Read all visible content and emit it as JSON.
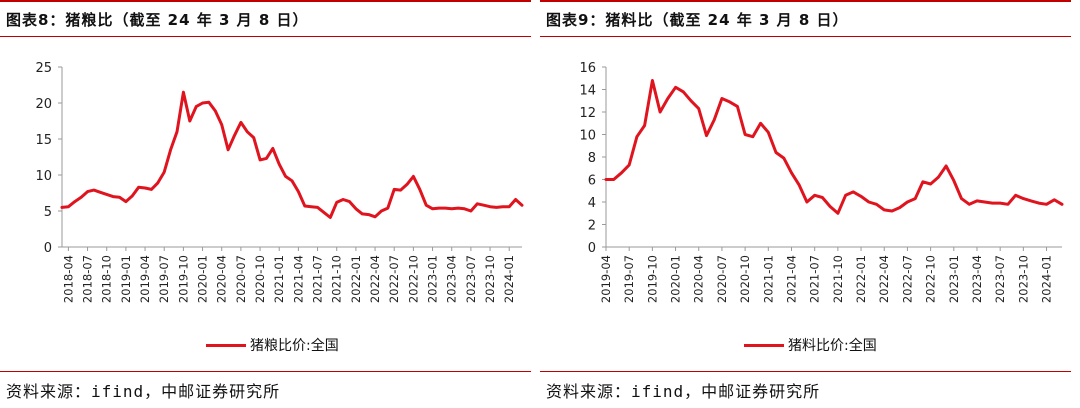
{
  "colors": {
    "accent": "#c00000",
    "series": "#e0141e"
  },
  "left": {
    "title": "图表8：猪粮比（截至 24 年 3 月 8 日）",
    "source": "资料来源：ifind，中邮证券研究所"
  },
  "right": {
    "title": "图表9：猪料比（截至 24 年 3 月 8 日）",
    "source": "资料来源：ifind，中邮证券研究所"
  },
  "chart_data": [
    {
      "type": "line",
      "title": "",
      "xlabel": "",
      "ylabel": "",
      "ylim": [
        0,
        25
      ],
      "yticks": [
        0,
        5,
        10,
        15,
        20,
        25
      ],
      "grid": false,
      "legend_position": "bottom",
      "xtick_labels": [
        "2018-04",
        "2018-07",
        "2018-10",
        "2019-01",
        "2019-04",
        "2019-07",
        "2019-10",
        "2020-01",
        "2020-04",
        "2020-07",
        "2020-10",
        "2021-01",
        "2021-04",
        "2021-07",
        "2021-10",
        "2022-01",
        "2022-04",
        "2022-07",
        "2022-10",
        "2023-01",
        "2023-04",
        "2023-07",
        "2023-10",
        "2024-01"
      ],
      "series": [
        {
          "name": "猪粮比价:全国",
          "x": [
            "2018-03",
            "2018-04",
            "2018-05",
            "2018-06",
            "2018-07",
            "2018-08",
            "2018-09",
            "2018-10",
            "2018-11",
            "2018-12",
            "2019-01",
            "2019-02",
            "2019-03",
            "2019-04",
            "2019-05",
            "2019-06",
            "2019-07",
            "2019-08",
            "2019-09",
            "2019-10",
            "2019-11",
            "2019-12",
            "2020-01",
            "2020-02",
            "2020-03",
            "2020-04",
            "2020-05",
            "2020-06",
            "2020-07",
            "2020-08",
            "2020-09",
            "2020-10",
            "2020-11",
            "2020-12",
            "2021-01",
            "2021-02",
            "2021-03",
            "2021-04",
            "2021-05",
            "2021-06",
            "2021-07",
            "2021-08",
            "2021-09",
            "2021-10",
            "2021-11",
            "2021-12",
            "2022-01",
            "2022-02",
            "2022-03",
            "2022-04",
            "2022-05",
            "2022-06",
            "2022-07",
            "2022-08",
            "2022-09",
            "2022-10",
            "2022-11",
            "2022-12",
            "2023-01",
            "2023-02",
            "2023-03",
            "2023-04",
            "2023-05",
            "2023-06",
            "2023-07",
            "2023-08",
            "2023-09",
            "2023-10",
            "2023-11",
            "2023-12",
            "2024-01",
            "2024-02",
            "2024-03"
          ],
          "values": [
            5.5,
            5.6,
            6.3,
            6.9,
            7.7,
            7.9,
            7.6,
            7.3,
            7.0,
            6.9,
            6.3,
            7.1,
            8.3,
            8.2,
            8.0,
            8.9,
            10.4,
            13.5,
            16.0,
            21.5,
            17.5,
            19.5,
            20.0,
            20.1,
            18.9,
            17.0,
            13.5,
            15.5,
            17.3,
            16.0,
            15.2,
            12.1,
            12.3,
            13.7,
            11.5,
            9.8,
            9.2,
            7.7,
            5.7,
            5.6,
            5.5,
            4.8,
            4.1,
            6.2,
            6.6,
            6.3,
            5.3,
            4.6,
            4.5,
            4.2,
            5.0,
            5.4,
            8.0,
            7.9,
            8.7,
            9.8,
            8.0,
            5.8,
            5.3,
            5.4,
            5.4,
            5.3,
            5.4,
            5.3,
            5.0,
            6.0,
            5.8,
            5.6,
            5.5,
            5.6,
            5.6,
            6.6,
            5.8
          ]
        }
      ]
    },
    {
      "type": "line",
      "title": "",
      "xlabel": "",
      "ylabel": "",
      "ylim": [
        0,
        16
      ],
      "yticks": [
        0,
        2,
        4,
        6,
        8,
        10,
        12,
        14,
        16
      ],
      "grid": false,
      "legend_position": "bottom",
      "xtick_labels": [
        "2019-04",
        "2019-07",
        "2019-10",
        "2020-01",
        "2020-04",
        "2020-07",
        "2020-10",
        "2021-01",
        "2021-04",
        "2021-07",
        "2021-10",
        "2022-01",
        "2022-04",
        "2022-07",
        "2022-10",
        "2023-01",
        "2023-04",
        "2023-07",
        "2023-10",
        "2024-01"
      ],
      "series": [
        {
          "name": "猪料比价:全国",
          "x": [
            "2019-04",
            "2019-05",
            "2019-06",
            "2019-07",
            "2019-08",
            "2019-09",
            "2019-10",
            "2019-11",
            "2019-12",
            "2020-01",
            "2020-02",
            "2020-03",
            "2020-04",
            "2020-05",
            "2020-06",
            "2020-07",
            "2020-08",
            "2020-09",
            "2020-10",
            "2020-11",
            "2020-12",
            "2021-01",
            "2021-02",
            "2021-03",
            "2021-04",
            "2021-05",
            "2021-06",
            "2021-07",
            "2021-08",
            "2021-09",
            "2021-10",
            "2021-11",
            "2021-12",
            "2022-01",
            "2022-02",
            "2022-03",
            "2022-04",
            "2022-05",
            "2022-06",
            "2022-07",
            "2022-08",
            "2022-09",
            "2022-10",
            "2022-11",
            "2022-12",
            "2023-01",
            "2023-02",
            "2023-03",
            "2023-04",
            "2023-05",
            "2023-06",
            "2023-07",
            "2023-08",
            "2023-09",
            "2023-10",
            "2023-11",
            "2023-12",
            "2024-01",
            "2024-02",
            "2024-03"
          ],
          "values": [
            6.0,
            6.0,
            6.6,
            7.3,
            9.8,
            10.8,
            14.8,
            12.0,
            13.2,
            14.2,
            13.8,
            13.0,
            12.3,
            9.9,
            11.3,
            13.2,
            12.9,
            12.5,
            10.0,
            9.8,
            11.0,
            10.2,
            8.4,
            7.9,
            6.6,
            5.5,
            4.0,
            4.6,
            4.4,
            3.6,
            3.0,
            4.6,
            4.9,
            4.5,
            4.0,
            3.8,
            3.3,
            3.2,
            3.5,
            4.0,
            4.3,
            5.8,
            5.6,
            6.2,
            7.2,
            5.9,
            4.3,
            3.8,
            4.1,
            4.0,
            3.9,
            3.9,
            3.8,
            4.6,
            4.3,
            4.1,
            3.9,
            3.8,
            4.2,
            3.8
          ]
        }
      ]
    }
  ]
}
